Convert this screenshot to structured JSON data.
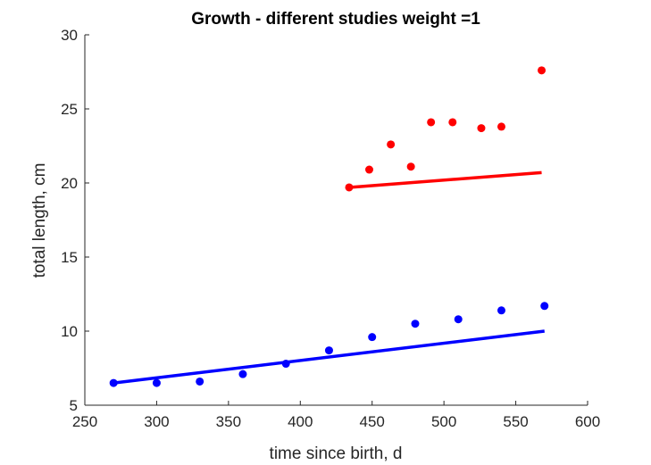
{
  "chart_data": {
    "type": "scatter",
    "title": "Growth - different studies weight =1",
    "xlabel": "time since birth, d",
    "ylabel": "total length, cm",
    "xlim": [
      250,
      600
    ],
    "ylim": [
      5,
      30
    ],
    "xticks": [
      "250",
      "300",
      "350",
      "400",
      "450",
      "500",
      "550",
      "600"
    ],
    "yticks": [
      "5",
      "10",
      "15",
      "20",
      "25",
      "30"
    ],
    "grid": false,
    "series": [
      {
        "color": "#ff0000",
        "points": [
          [
            434,
            19.7
          ],
          [
            448,
            20.9
          ],
          [
            463,
            22.6
          ],
          [
            477,
            21.1
          ],
          [
            491,
            24.1
          ],
          [
            506,
            24.1
          ],
          [
            526,
            23.7
          ],
          [
            540,
            23.8
          ],
          [
            568,
            27.6
          ]
        ],
        "fit_line": [
          [
            434,
            19.7
          ],
          [
            568,
            20.7
          ]
        ]
      },
      {
        "color": "#0000ff",
        "points": [
          [
            270,
            6.5
          ],
          [
            300,
            6.5
          ],
          [
            330,
            6.6
          ],
          [
            360,
            7.1
          ],
          [
            390,
            7.8
          ],
          [
            420,
            8.7
          ],
          [
            450,
            9.6
          ],
          [
            480,
            10.5
          ],
          [
            510,
            10.8
          ],
          [
            540,
            11.4
          ],
          [
            570,
            11.7
          ]
        ],
        "fit_line": [
          [
            270,
            6.5
          ],
          [
            570,
            10.0
          ]
        ]
      }
    ]
  }
}
